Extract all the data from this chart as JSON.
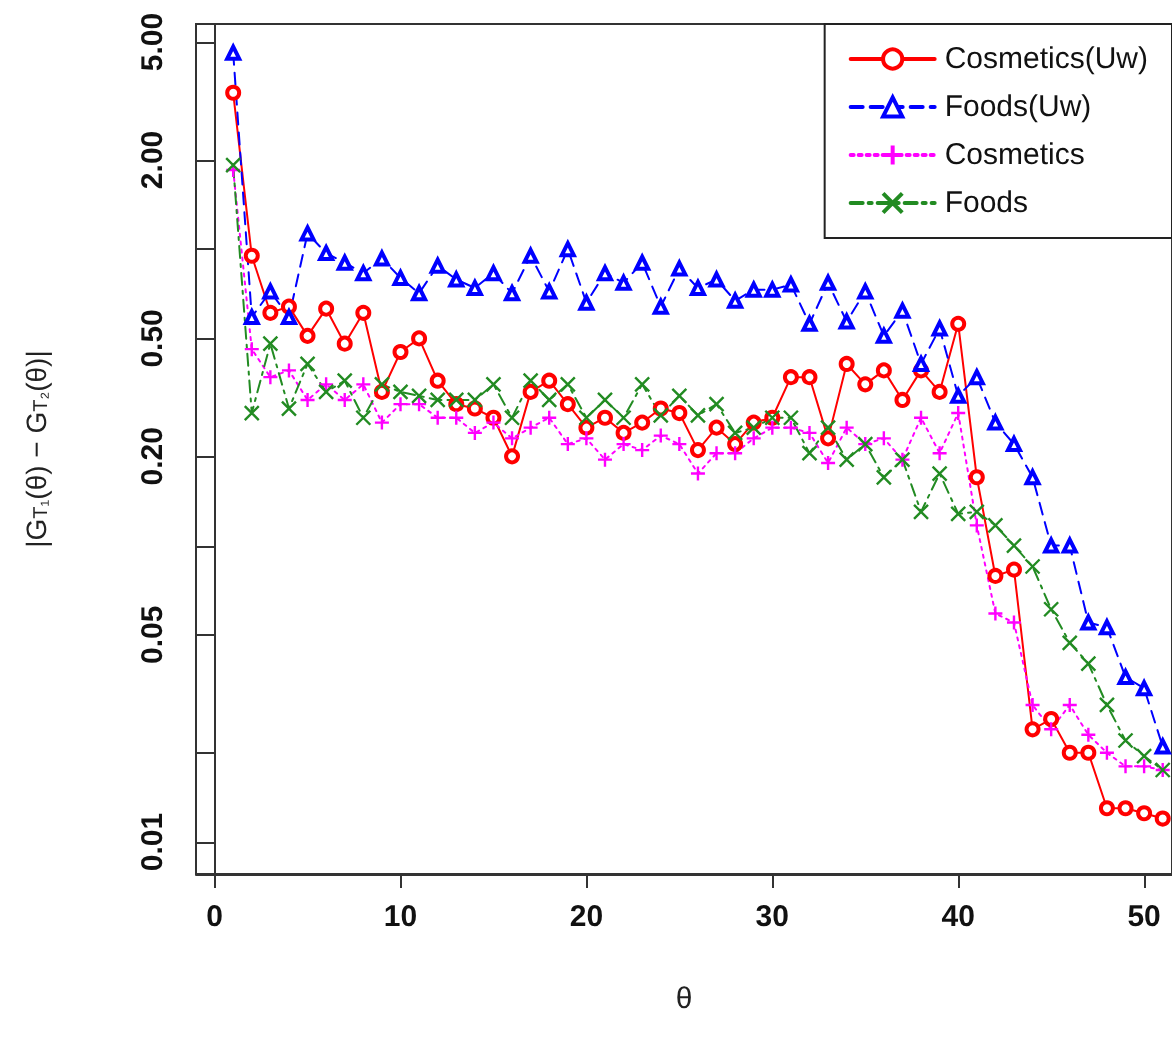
{
  "chart_data": {
    "type": "line",
    "xlabel": "θ",
    "ylabel": "|G$_{T₁}$(θ) − G$_{T₂}$(θ)|",
    "x": [
      1,
      2,
      3,
      4,
      5,
      6,
      7,
      8,
      9,
      10,
      11,
      12,
      13,
      14,
      15,
      16,
      17,
      18,
      19,
      20,
      21,
      22,
      23,
      24,
      25,
      26,
      27,
      28,
      29,
      30,
      31,
      32,
      33,
      34,
      35,
      36,
      37,
      38,
      39,
      40,
      41,
      42,
      43,
      44,
      45,
      46,
      47,
      48,
      49,
      50,
      51
    ],
    "xlim": [
      -1,
      51.5
    ],
    "xticks": [
      0,
      10,
      20,
      30,
      40,
      50
    ],
    "log": "y",
    "ylim": [
      0.0078,
      5.75
    ],
    "yticks": [
      {
        "value": 0.01,
        "label": "0.01"
      },
      {
        "value": 0.02,
        "label": null
      },
      {
        "value": 0.05,
        "label": "0.05"
      },
      {
        "value": 0.1,
        "label": null
      },
      {
        "value": 0.2,
        "label": "0.20"
      },
      {
        "value": 0.5,
        "label": "0.50"
      },
      {
        "value": 1,
        "label": null
      },
      {
        "value": 2,
        "label": "2.00"
      },
      {
        "value": 5,
        "label": "5.00"
      }
    ],
    "legend": "top right",
    "series": [
      {
        "name": "Cosmetics(Uw)",
        "color": "#ff0000",
        "marker": "circle",
        "line_style": "solid",
        "values": [
          3.37,
          0.95,
          0.61,
          0.64,
          0.51,
          0.63,
          0.48,
          0.61,
          0.33,
          0.45,
          0.5,
          0.36,
          0.3,
          0.29,
          0.27,
          0.2,
          0.33,
          0.36,
          0.3,
          0.25,
          0.27,
          0.24,
          0.26,
          0.29,
          0.28,
          0.21,
          0.25,
          0.22,
          0.26,
          0.27,
          0.37,
          0.37,
          0.23,
          0.41,
          0.35,
          0.39,
          0.31,
          0.39,
          0.33,
          0.56,
          0.17,
          0.079,
          0.083,
          0.024,
          0.026,
          0.02,
          0.02,
          0.013,
          0.013,
          0.0125,
          0.012
        ]
      },
      {
        "name": "Foods(Uw)",
        "color": "#0000ff",
        "marker": "triangle",
        "line_style": "dashed",
        "values": [
          4.6,
          0.59,
          0.72,
          0.59,
          1.13,
          0.97,
          0.9,
          0.83,
          0.93,
          0.8,
          0.71,
          0.88,
          0.79,
          0.74,
          0.83,
          0.71,
          0.95,
          0.72,
          1.0,
          0.66,
          0.83,
          0.77,
          0.9,
          0.64,
          0.86,
          0.74,
          0.79,
          0.67,
          0.73,
          0.73,
          0.76,
          0.56,
          0.77,
          0.57,
          0.72,
          0.51,
          0.62,
          0.41,
          0.54,
          0.32,
          0.37,
          0.26,
          0.22,
          0.17,
          0.1,
          0.1,
          0.055,
          0.053,
          0.036,
          0.033,
          0.021
        ]
      },
      {
        "name": "Cosmetics",
        "color": "#ff00ff",
        "marker": "plus",
        "line_style": "dotted",
        "values": [
          1.85,
          0.46,
          0.37,
          0.39,
          0.31,
          0.35,
          0.31,
          0.35,
          0.26,
          0.3,
          0.3,
          0.27,
          0.27,
          0.24,
          0.26,
          0.23,
          0.25,
          0.27,
          0.22,
          0.23,
          0.195,
          0.22,
          0.21,
          0.235,
          0.22,
          0.175,
          0.205,
          0.205,
          0.23,
          0.25,
          0.25,
          0.24,
          0.19,
          0.25,
          0.22,
          0.23,
          0.195,
          0.27,
          0.205,
          0.28,
          0.117,
          0.059,
          0.055,
          0.029,
          0.024,
          0.029,
          0.023,
          0.02,
          0.018,
          0.018,
          0.0175
        ]
      },
      {
        "name": "Foods",
        "color": "#228b22",
        "marker": "cross",
        "line_style": "dashdot",
        "values": [
          1.92,
          0.28,
          0.48,
          0.29,
          0.41,
          0.33,
          0.36,
          0.27,
          0.35,
          0.33,
          0.32,
          0.31,
          0.31,
          0.31,
          0.35,
          0.27,
          0.36,
          0.31,
          0.35,
          0.27,
          0.31,
          0.27,
          0.35,
          0.275,
          0.32,
          0.275,
          0.3,
          0.24,
          0.25,
          0.27,
          0.27,
          0.205,
          0.25,
          0.195,
          0.22,
          0.17,
          0.195,
          0.13,
          0.175,
          0.128,
          0.13,
          0.117,
          0.1,
          0.085,
          0.061,
          0.047,
          0.04,
          0.029,
          0.022,
          0.0195,
          0.0175
        ]
      }
    ]
  }
}
